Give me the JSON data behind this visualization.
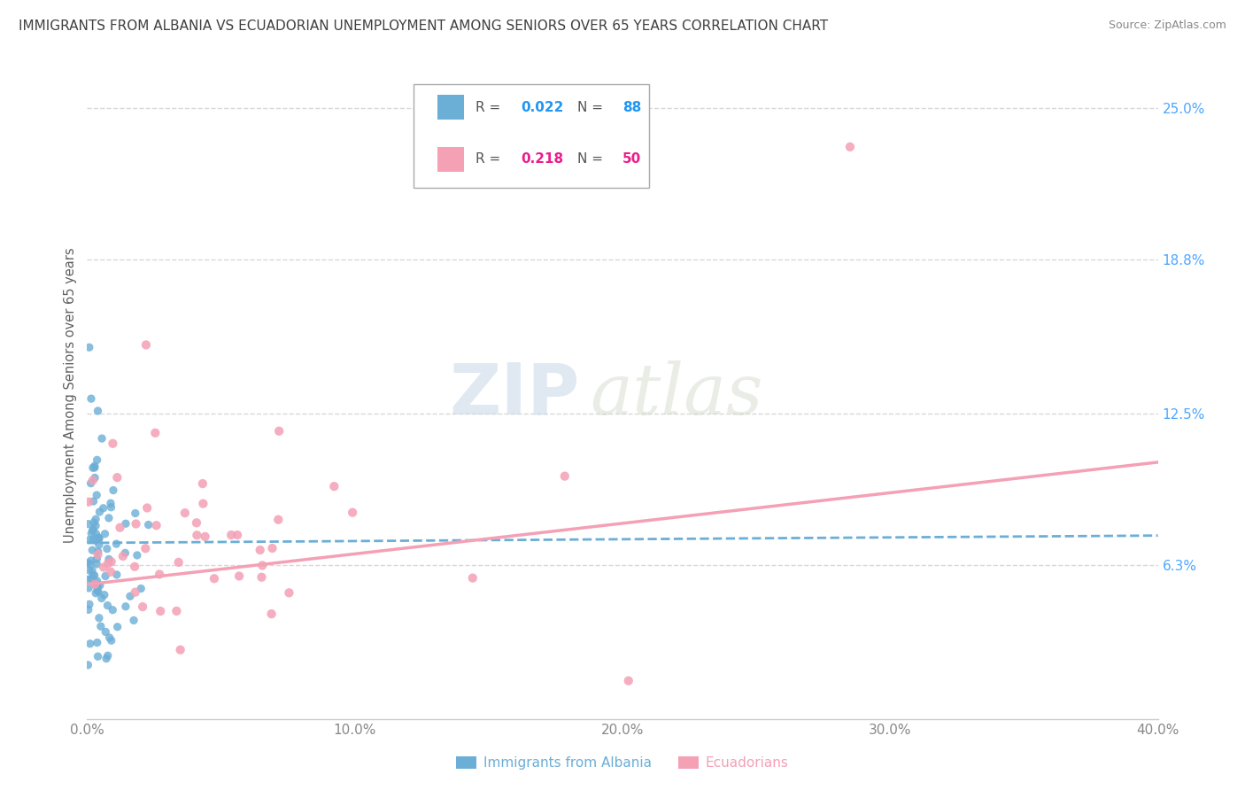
{
  "title": "IMMIGRANTS FROM ALBANIA VS ECUADORIAN UNEMPLOYMENT AMONG SENIORS OVER 65 YEARS CORRELATION CHART",
  "source": "Source: ZipAtlas.com",
  "xlabel_vals": [
    0.0,
    10.0,
    20.0,
    30.0,
    40.0
  ],
  "ylabel_right_vals": [
    6.3,
    12.5,
    18.8,
    25.0
  ],
  "ylabel_label": "Unemployment Among Seniors over 65 years",
  "albania_color": "#6baed6",
  "ecuador_color": "#f4a0b5",
  "R_albania": 0.022,
  "N_albania": 88,
  "R_ecuador": 0.218,
  "N_ecuador": 50,
  "xlim": [
    0,
    40
  ],
  "ylim": [
    0,
    26.5
  ],
  "watermark_zip": "ZIP",
  "watermark_atlas": "atlas",
  "legend_label_albania": "Immigrants from Albania",
  "legend_label_ecuador": "Ecuadorians",
  "background_color": "#ffffff",
  "grid_color": "#d8d8d8",
  "title_color": "#404040",
  "source_color": "#888888",
  "axis_label_color": "#606060",
  "tick_color": "#888888",
  "right_tick_color": "#4da6ff",
  "albania_trend_start_y": 7.2,
  "albania_trend_end_y": 7.5,
  "ecuador_trend_start_y": 5.5,
  "ecuador_trend_end_y": 10.5
}
